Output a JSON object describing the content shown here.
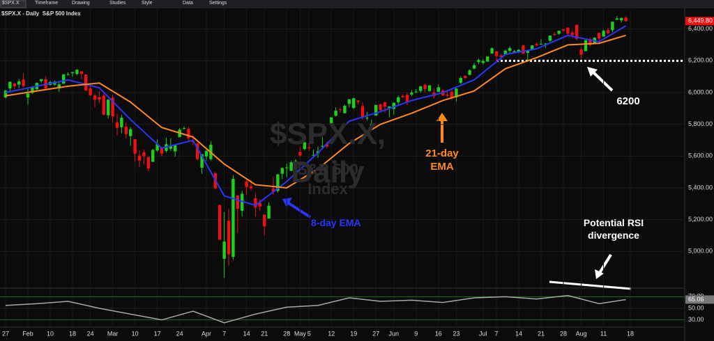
{
  "toolbar": {
    "symbol": "$SPX.X",
    "items": [
      "Timeframe",
      "Drawing",
      "Studies",
      "Style",
      "Data",
      "Settings"
    ]
  },
  "chart_data": {
    "type": "candlestick",
    "title": "$SPX.X - Daily",
    "subtitle": "S&P 500 Index",
    "watermark": "$SPX.X, Daily",
    "categories": [
      "27",
      null,
      null,
      null,
      null,
      "Feb",
      null,
      null,
      null,
      null,
      "10",
      null,
      null,
      null,
      null,
      "18",
      null,
      null,
      null,
      "24",
      null,
      null,
      null,
      null,
      "Mar",
      null,
      null,
      null,
      null,
      "10",
      null,
      null,
      null,
      null,
      "17",
      null,
      null,
      null,
      null,
      "24",
      null,
      null,
      null,
      null,
      null,
      "Apr",
      null,
      null,
      null,
      "7",
      null,
      null,
      null,
      null,
      "14",
      null,
      null,
      null,
      "21",
      null,
      null,
      null,
      null,
      "28",
      null,
      null,
      "May",
      null,
      "5",
      null,
      null,
      null,
      null,
      "12",
      null,
      null,
      null,
      null,
      "19",
      null,
      null,
      null,
      null,
      "27",
      null,
      null,
      null,
      "Jun",
      null,
      null,
      null,
      null,
      "9",
      null,
      null,
      null,
      null,
      "16",
      null,
      null,
      null,
      "23",
      null,
      null,
      null,
      null,
      null,
      "Jul",
      null,
      null,
      "7",
      null,
      null,
      null,
      null,
      "14",
      null,
      null,
      null,
      null,
      "21",
      null,
      null,
      null,
      null,
      "28",
      null,
      null,
      null,
      "Aug",
      null,
      null,
      null,
      null,
      "11",
      null,
      null,
      null,
      null,
      null,
      "18"
    ],
    "open": [
      5969,
      6026,
      6057,
      6050,
      6082,
      5969,
      5998,
      6021,
      6072,
      6083,
      6048,
      6050,
      6026,
      6057,
      6115,
      6122,
      6117,
      6134,
      6114,
      6027,
      5982,
      5971,
      5981,
      5857,
      5968,
      5812,
      5782,
      5785,
      5726,
      5706,
      5603,
      5624,
      5594,
      5564,
      5635,
      5655,
      5633,
      5646,
      5630,
      5719,
      5775,
      5772,
      5695,
      5679,
      5527,
      5598,
      5581,
      5492,
      5292,
      4954,
      5194,
      4966,
      5353,
      5256,
      5441,
      5411,
      5335,
      5305,
      5232,
      5207,
      5395,
      5381,
      5489,
      5529,
      5508,
      5500,
      5626,
      5645,
      5655,
      5606,
      5618,
      5663,
      5679,
      5808,
      5854,
      5895,
      5870,
      5929,
      5903,
      5950,
      5915,
      5841,
      5781,
      5855,
      5926,
      5939,
      5903,
      5897,
      5939,
      5979,
      5985,
      5988,
      6005,
      6010,
      6049,
      6010,
      6000,
      6004,
      6013,
      5987,
      6005,
      5970,
      6061,
      6105,
      6112,
      6151,
      6193,
      6187,
      6195,
      6246,
      6259,
      6233,
      6240,
      6263,
      6255,
      6255,
      6296,
      6250,
      6269,
      6306,
      6304,
      6307,
      6326,
      6368,
      6370,
      6397,
      6409,
      6377,
      6427,
      6271,
      6261,
      6336,
      6309,
      6375,
      6352,
      6393,
      6393,
      6459,
      6454,
      6472,
      null
    ],
    "high": [
      6017,
      6069,
      6062,
      6086,
      6121,
      6022,
      6042,
      6063,
      6085,
      6101,
      6073,
      6076,
      6065,
      6116,
      6127,
      6129,
      6147,
      6135,
      6115,
      6044,
      5992,
      6010,
      5994,
      5959,
      5986,
      5866,
      5860,
      5812,
      5783,
      5706,
      5636,
      5642,
      5598,
      5646,
      5704,
      5658,
      5716,
      5712,
      5671,
      5776,
      5787,
      5784,
      5732,
      5685,
      5613,
      5650,
      5695,
      5500,
      5293,
      5247,
      5267,
      5482,
      5353,
      5381,
      5460,
      5450,
      5368,
      5328,
      5232,
      5310,
      5469,
      5489,
      5528,
      5553,
      5571,
      5581,
      5658,
      5700,
      5684,
      5641,
      5660,
      5721,
      5691,
      5845,
      5906,
      5906,
      5924,
      5958,
      5968,
      5954,
      5938,
      5878,
      5829,
      5922,
      5930,
      5944,
      5915,
      5937,
      5982,
      5990,
      5999,
      6016,
      6022,
      6043,
      6059,
      6047,
      6026,
      6051,
      6024,
      6018,
      6018,
      6028,
      6102,
      6108,
      6146,
      6187,
      6215,
      6210,
      6227,
      6285,
      6263,
      6242,
      6271,
      6291,
      6269,
      6273,
      6302,
      6268,
      6299,
      6316,
      6336,
      6310,
      6359,
      6381,
      6389,
      6401,
      6410,
      6393,
      6427,
      6287,
      6331,
      6346,
      6349,
      6379,
      6396,
      6409,
      6446,
      6481,
      6474,
      6481,
      null
    ],
    "low": [
      5962,
      6007,
      6020,
      6028,
      6031,
      5923,
      5990,
      6010,
      6060,
      6020,
      6045,
      6043,
      6003,
      6051,
      6107,
      6100,
      6111,
      6084,
      6009,
      5977,
      5909,
      5932,
      5858,
      5837,
      5810,
      5732,
      5744,
      5711,
      5666,
      5565,
      5529,
      5547,
      5505,
      5564,
      5628,
      5598,
      5622,
      5632,
      5597,
      5719,
      5765,
      5695,
      5670,
      5572,
      5489,
      5573,
      5572,
      5390,
      5070,
      4835,
      4911,
      4950,
      5116,
      5221,
      5355,
      5386,
      5220,
      5256,
      5101,
      5207,
      5356,
      5371,
      5455,
      5468,
      5505,
      5433,
      5597,
      5637,
      5634,
      5589,
      5588,
      5643,
      5650,
      5788,
      5849,
      5874,
      5868,
      5907,
      5896,
      5924,
      5830,
      5825,
      5767,
      5855,
      5883,
      5874,
      5843,
      5862,
      5919,
      5967,
      5921,
      5978,
      5996,
      6000,
      6002,
      6005,
      5963,
      6004,
      5977,
      5971,
      5952,
      5944,
      6054,
      6082,
      6108,
      6146,
      6180,
      6177,
      6193,
      6246,
      6201,
      6218,
      6234,
      6250,
      6248,
      6248,
      6244,
      6201,
      6265,
      6290,
      6303,
      6282,
      6318,
      6357,
      6364,
      6380,
      6362,
      6344,
      6328,
      6213,
      6261,
      6290,
      6304,
      6310,
      6352,
      6364,
      6379,
      6456,
      6441,
      6447,
      null
    ],
    "close": [
      6012,
      6068,
      6039,
      6071,
      6041,
      5994,
      6037,
      6061,
      6084,
      6026,
      6066,
      6068,
      6052,
      6115,
      6115,
      6129,
      6144,
      6117,
      6013,
      5983,
      5955,
      5956,
      5861,
      5955,
      5850,
      5778,
      5842,
      5738,
      5770,
      5615,
      5572,
      5599,
      5522,
      5639,
      5675,
      5615,
      5675,
      5663,
      5668,
      5767,
      5777,
      5712,
      5693,
      5581,
      5612,
      5633,
      5671,
      5397,
      5074,
      5062,
      4982,
      5457,
      5268,
      5363,
      5406,
      5397,
      5276,
      5283,
      5158,
      5288,
      5376,
      5485,
      5525,
      5529,
      5561,
      5569,
      5604,
      5687,
      5650,
      5607,
      5631,
      5664,
      5660,
      5844,
      5886,
      5892,
      5917,
      5958,
      5964,
      5940,
      5845,
      5842,
      5802,
      5922,
      5889,
      5912,
      5912,
      5936,
      5970,
      5971,
      5939,
      6000,
      6006,
      6039,
      6022,
      6045,
      5977,
      6033,
      5983,
      5981,
      5968,
      6025,
      6092,
      6092,
      6141,
      6173,
      6205,
      6198,
      6227,
      6279,
      6230,
      6226,
      6263,
      6280,
      6260,
      6269,
      6244,
      6264,
      6297,
      6297,
      6306,
      6309,
      6359,
      6363,
      6389,
      6390,
      6371,
      6362,
      6339,
      6238,
      6330,
      6299,
      6345,
      6340,
      6389,
      6374,
      6446,
      6466,
      6469,
      6449,
      null
    ],
    "up_color": "#19d219",
    "down_color": "#f01010",
    "lines": [
      {
        "color": "#2a36ff",
        "x": [
          0,
          7,
          14,
          21,
          28,
          35,
          42,
          49,
          56,
          63,
          70,
          77,
          84,
          91,
          98,
          105,
          112,
          119,
          126,
          133,
          139
        ],
        "values": [
          6000,
          6040,
          6080,
          6030,
          5830,
          5650,
          5700,
          5350,
          5290,
          5440,
          5620,
          5820,
          5880,
          5950,
          6000,
          6080,
          6240,
          6275,
          6360,
          6320,
          6420
        ]
      },
      {
        "color": "#ff8a1c",
        "x": [
          0,
          7,
          14,
          21,
          28,
          35,
          42,
          49,
          56,
          63,
          70,
          77,
          84,
          91,
          98,
          105,
          112,
          119,
          126,
          133,
          139
        ],
        "values": [
          5980,
          6010,
          6040,
          6060,
          5940,
          5780,
          5720,
          5550,
          5420,
          5400,
          5520,
          5680,
          5800,
          5870,
          5950,
          6010,
          6150,
          6220,
          6300,
          6310,
          6360
        ]
      }
    ],
    "ylim": [
      4800,
      6530
    ],
    "yticks": [
      {
        "value": 5000,
        "label": "5,000.00"
      },
      {
        "value": 5200,
        "label": "5,200.00"
      },
      {
        "value": 5400,
        "label": "5,400.00"
      },
      {
        "value": 5600,
        "label": "5,600.00"
      },
      {
        "value": 5800,
        "label": "5,800.00"
      },
      {
        "value": 6000,
        "label": "6,000.00"
      },
      {
        "value": 6200,
        "label": "6,200.00"
      },
      {
        "value": 6400,
        "label": "6,400.00"
      }
    ],
    "last_price": {
      "value": 6449.8,
      "label": "6,449.80"
    },
    "reference_line": 6200,
    "annotations": [
      "21-day EMA",
      "8-day EMA",
      "Potential RSI divergence"
    ],
    "rsi": {
      "color": "#a8a8a8",
      "x": [
        0,
        7,
        14,
        21,
        28,
        35,
        42,
        49,
        56,
        63,
        70,
        77,
        84,
        91,
        98,
        105,
        112,
        119,
        126,
        133,
        139
      ],
      "values": [
        55,
        58,
        62,
        50,
        40,
        30,
        45,
        25,
        40,
        52,
        55,
        68,
        62,
        64,
        60,
        68,
        70,
        66,
        72,
        58,
        65.06
      ],
      "ylim": [
        20,
        80
      ],
      "yticks": [
        {
          "value": 30,
          "label": "30.00"
        },
        {
          "value": 50,
          "label": "50.00"
        },
        {
          "value": 70,
          "label": "70.00"
        }
      ],
      "value_label": "65.06"
    },
    "grid": true
  }
}
